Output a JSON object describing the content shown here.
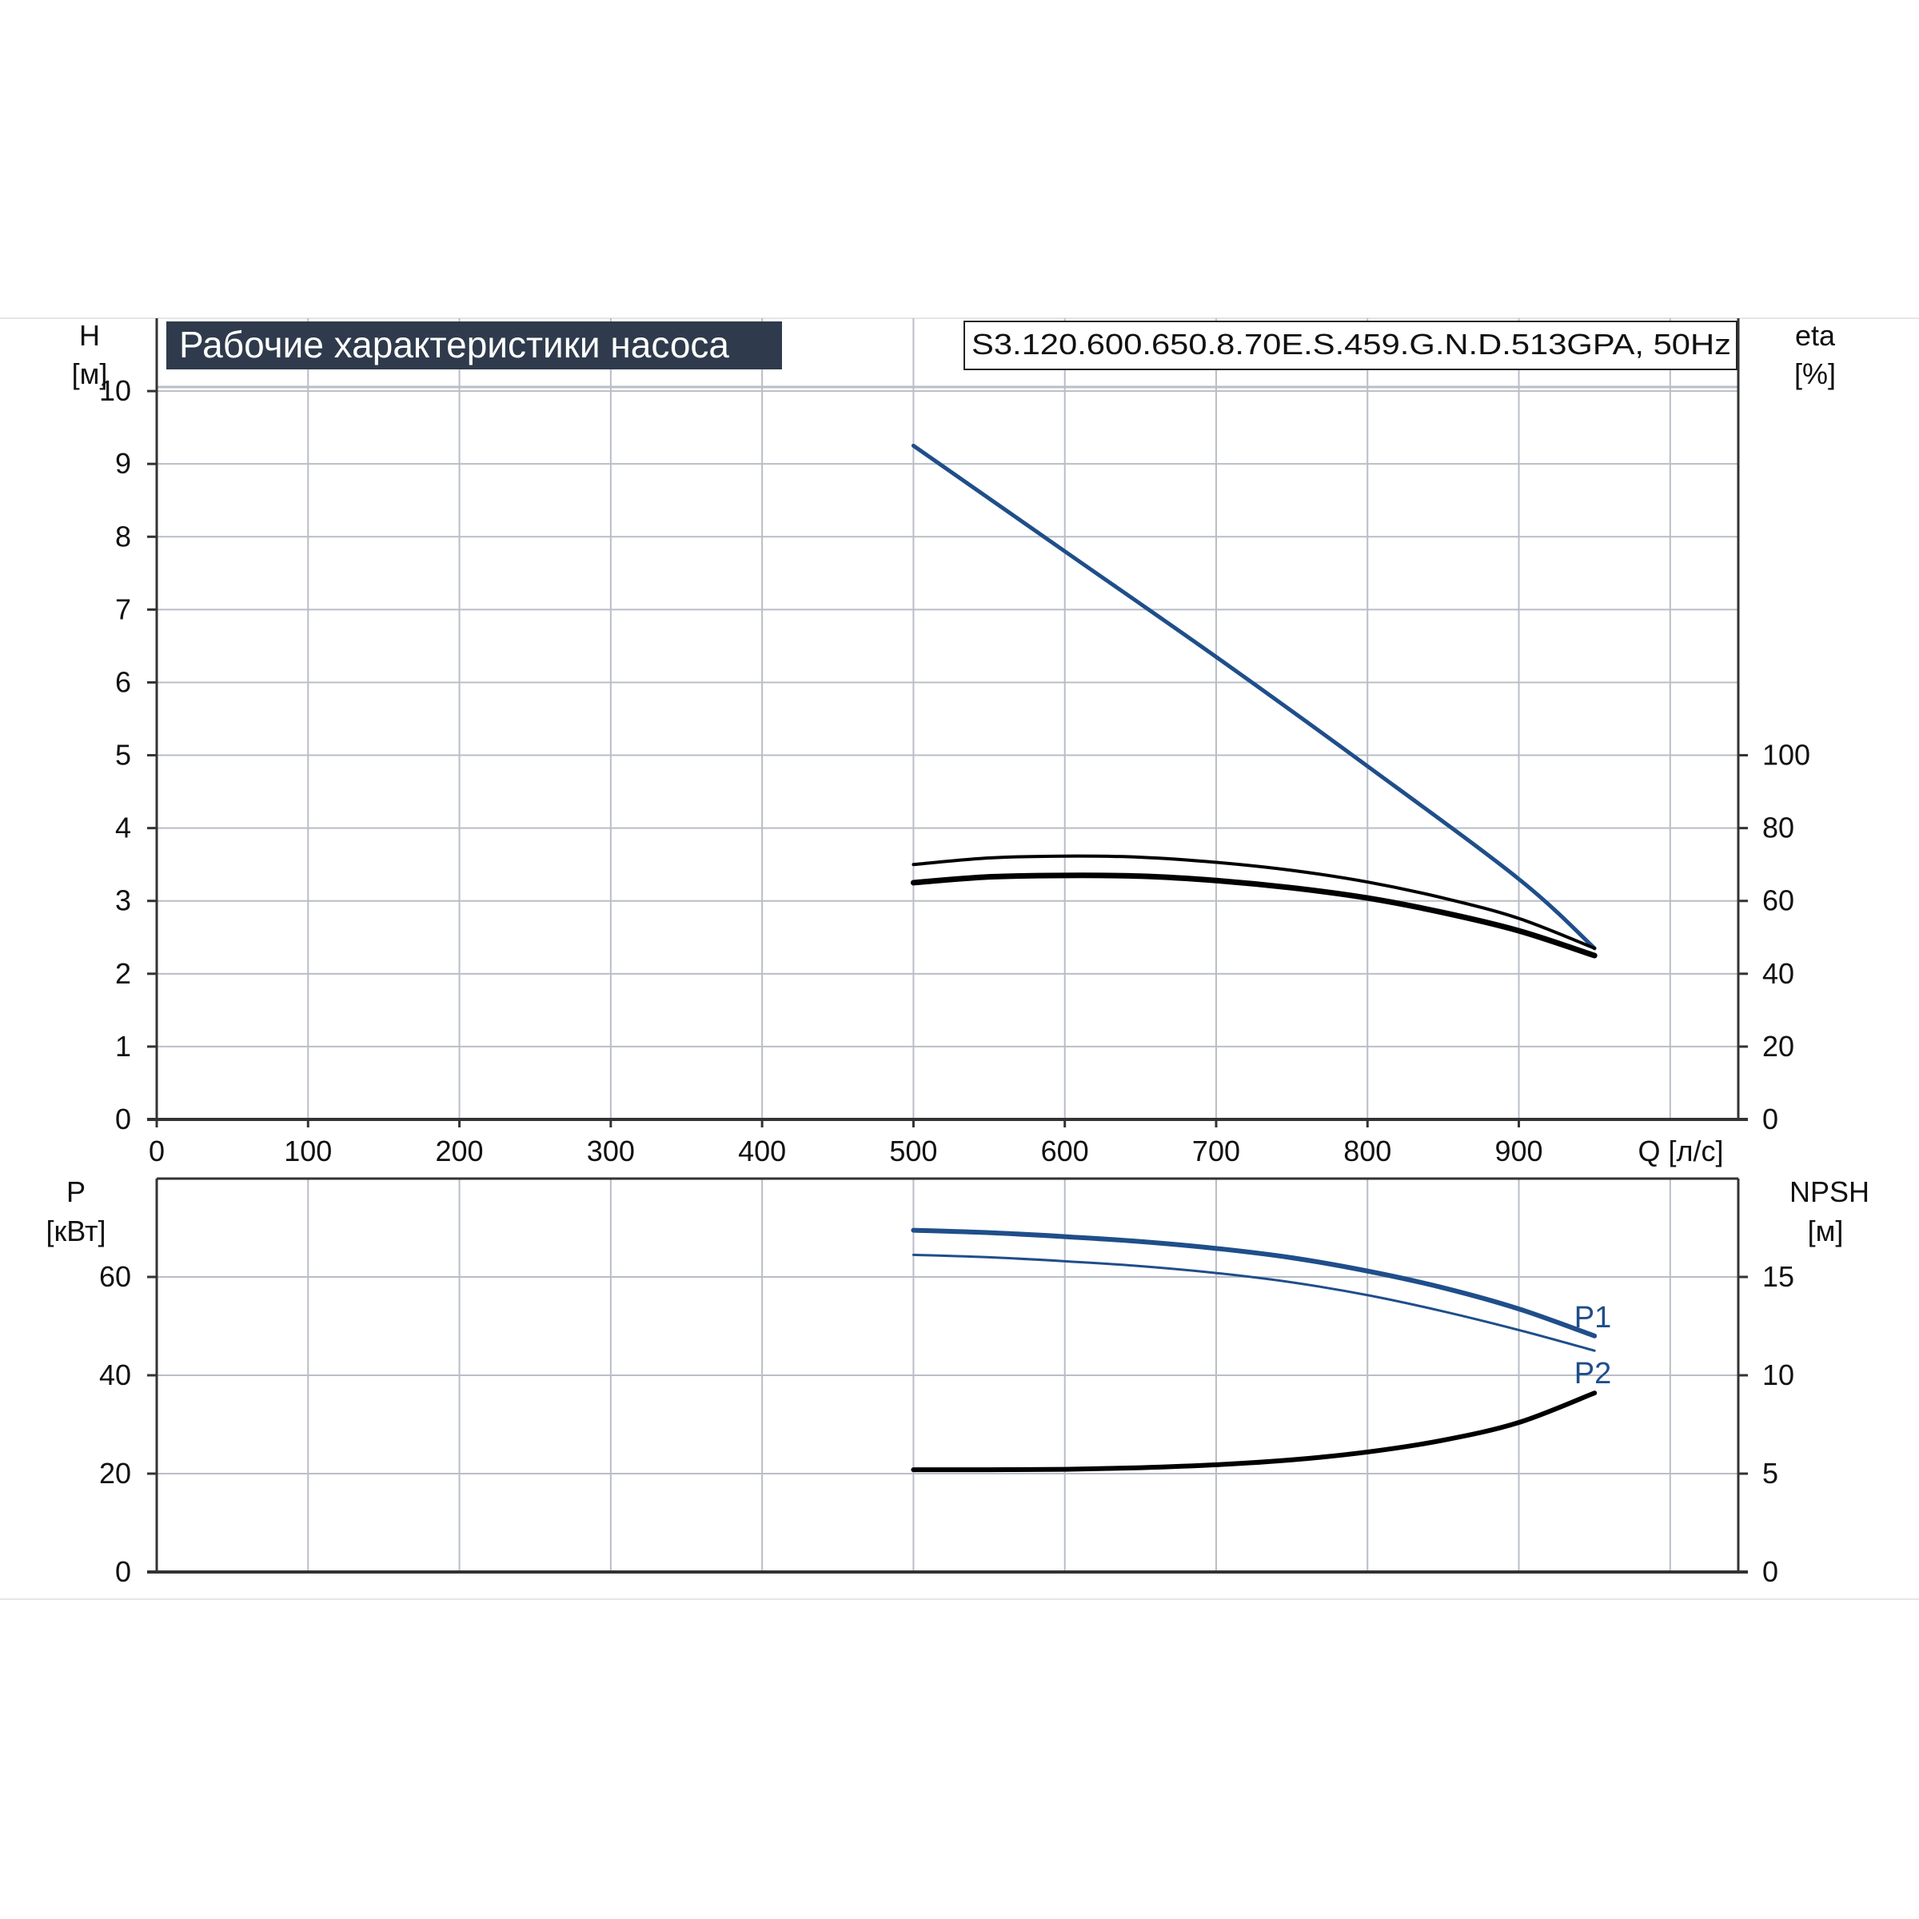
{
  "title_badge": "Рабочие характеристики насоса",
  "model_label": "S3.120.600.650.8.70E.S.459.G.N.D.513GPA, 50Hz",
  "colors": {
    "badge_bg": "#2f3b4c",
    "blue": "#1f4e8a",
    "black": "#000000",
    "grid": "#b9bec6",
    "axis": "#333333"
  },
  "chart_data": [
    {
      "type": "line",
      "x": {
        "label": "Q [л/с]",
        "ticks": [
          "0",
          "100",
          "200",
          "300",
          "400",
          "500",
          "600",
          "700",
          "800",
          "900"
        ],
        "range": [
          0,
          1045
        ]
      },
      "y_left": {
        "label_top": "H",
        "label_unit": "[м]",
        "ticks": [
          "0",
          "1",
          "2",
          "3",
          "4",
          "5",
          "6",
          "7",
          "8",
          "9",
          "10"
        ],
        "range": [
          0,
          11
        ]
      },
      "y_right": {
        "label_top": "eta",
        "label_unit": "[%]",
        "ticks": [
          "0",
          "20",
          "40",
          "60",
          "80",
          "100"
        ],
        "range": [
          0,
          220
        ]
      },
      "grid": true,
      "series": [
        {
          "axis": "left",
          "color": "blue",
          "width": 5,
          "x": [
            500,
            600,
            700,
            800,
            900,
            950
          ],
          "y": [
            9.25,
            7.8,
            6.35,
            4.85,
            3.3,
            2.35
          ]
        },
        {
          "axis": "right",
          "color": "black",
          "width": 4,
          "x": [
            500,
            550,
            600,
            650,
            700,
            750,
            800,
            850,
            900,
            950
          ],
          "y": [
            70,
            71.8,
            72.3,
            72,
            70.6,
            68.4,
            65.2,
            60.8,
            55.2,
            47
          ]
        },
        {
          "axis": "right",
          "color": "black",
          "width": 7,
          "x": [
            500,
            550,
            600,
            650,
            700,
            750,
            800,
            850,
            900,
            950
          ],
          "y": [
            65,
            66.6,
            67,
            66.8,
            65.6,
            63.6,
            60.8,
            56.8,
            51.8,
            45
          ]
        }
      ]
    },
    {
      "type": "line",
      "x": {
        "range": [
          0,
          1045
        ]
      },
      "y_left": {
        "label_top": "P",
        "label_unit": "[кВт]",
        "ticks": [
          "0",
          "20",
          "40",
          "60"
        ],
        "range": [
          0,
          80
        ]
      },
      "y_right": {
        "label_top": "NPSH",
        "label_unit": "[м]",
        "ticks": [
          "0",
          "5",
          "10",
          "15"
        ],
        "range": [
          0,
          20
        ]
      },
      "grid": true,
      "series": [
        {
          "name": "P1",
          "axis": "left",
          "color": "blue",
          "width": 6,
          "x": [
            500,
            550,
            600,
            650,
            700,
            750,
            800,
            850,
            900,
            950
          ],
          "y": [
            69.5,
            69,
            68.2,
            67.2,
            65.8,
            63.9,
            61.2,
            57.8,
            53.5,
            48
          ]
        },
        {
          "name": "P2",
          "axis": "left",
          "color": "blue",
          "width": 3,
          "x": [
            500,
            550,
            600,
            650,
            700,
            750,
            800,
            850,
            900,
            950
          ],
          "y": [
            64.5,
            64,
            63.2,
            62.2,
            60.8,
            58.9,
            56.3,
            53,
            49.2,
            45
          ]
        },
        {
          "axis": "right",
          "color": "black",
          "width": 6,
          "x": [
            500,
            550,
            600,
            650,
            700,
            750,
            800,
            850,
            900,
            950
          ],
          "y": [
            5.2,
            5.2,
            5.22,
            5.3,
            5.45,
            5.7,
            6.1,
            6.7,
            7.6,
            9.1
          ]
        }
      ]
    }
  ]
}
